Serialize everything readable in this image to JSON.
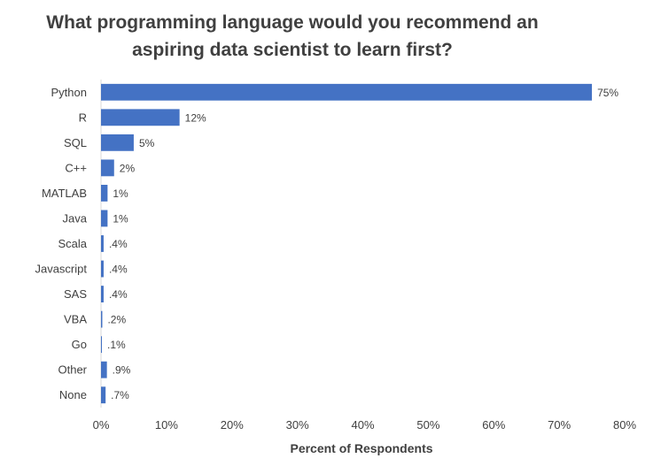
{
  "chart_data": {
    "type": "bar",
    "orientation": "horizontal",
    "title_lines": [
      "What programming language would you recommend an",
      "aspiring data scientist to learn first?"
    ],
    "xlabel": "Percent of Respondents",
    "ylabel": "",
    "xlim": [
      0,
      80
    ],
    "x_ticks": [
      0,
      10,
      20,
      30,
      40,
      50,
      60,
      70,
      80
    ],
    "x_tick_labels": [
      "0%",
      "10%",
      "20%",
      "30%",
      "40%",
      "50%",
      "60%",
      "70%",
      "80%"
    ],
    "grid": false,
    "legend": "none",
    "bar_color": "#4472C4",
    "categories": [
      "Python",
      "R",
      "SQL",
      "C++",
      "MATLAB",
      "Java",
      "Scala",
      "Javascript",
      "SAS",
      "VBA",
      "Go",
      "Other",
      "None"
    ],
    "values": [
      75,
      12,
      5,
      2,
      1,
      1,
      0.4,
      0.4,
      0.4,
      0.2,
      0.1,
      0.9,
      0.7
    ],
    "data_labels": [
      "75%",
      "12%",
      "5%",
      "2%",
      "1%",
      "1%",
      ".4%",
      ".4%",
      ".4%",
      ".2%",
      ".1%",
      ".9%",
      ".7%"
    ]
  }
}
